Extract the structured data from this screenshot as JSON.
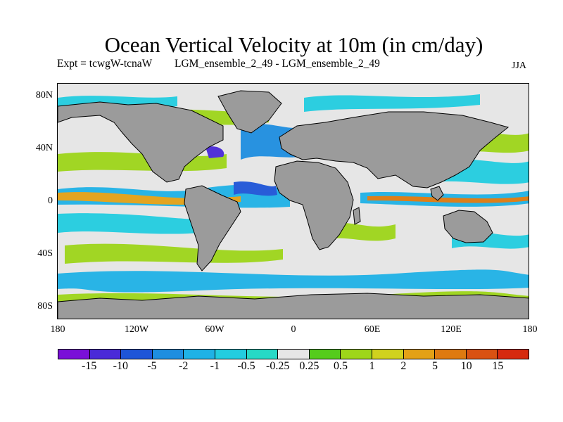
{
  "title": "Ocean Vertical Velocity at 10m (in cm/day)",
  "subtitle_left": "Expt = tcwgW-tcnaW",
  "subtitle_mid": "LGM_ensemble_2_49 - LGM_ensemble_2_49",
  "season": "JJA",
  "lat_labels": [
    "80N",
    "40N",
    "0",
    "40S",
    "80S"
  ],
  "lon_labels": [
    "180",
    "120W",
    "60W",
    "0",
    "60E",
    "120E",
    "180"
  ],
  "colorbar": {
    "colors": [
      "#7a10d8",
      "#4a2ad8",
      "#1e55d8",
      "#1e8ee0",
      "#1fb2e6",
      "#23cde0",
      "#27d9c6",
      "#e6e6e6",
      "#55cc1c",
      "#9ed61a",
      "#d0d21e",
      "#e3a116",
      "#de7a10",
      "#d95212",
      "#d62a0e"
    ],
    "labels": [
      "-15",
      "-10",
      "-5",
      "-2",
      "-1",
      "-0.5",
      "-0.25",
      "0.25",
      "0.5",
      "1",
      "2",
      "5",
      "10",
      "15"
    ]
  },
  "land_color": "#9b9b9b"
}
